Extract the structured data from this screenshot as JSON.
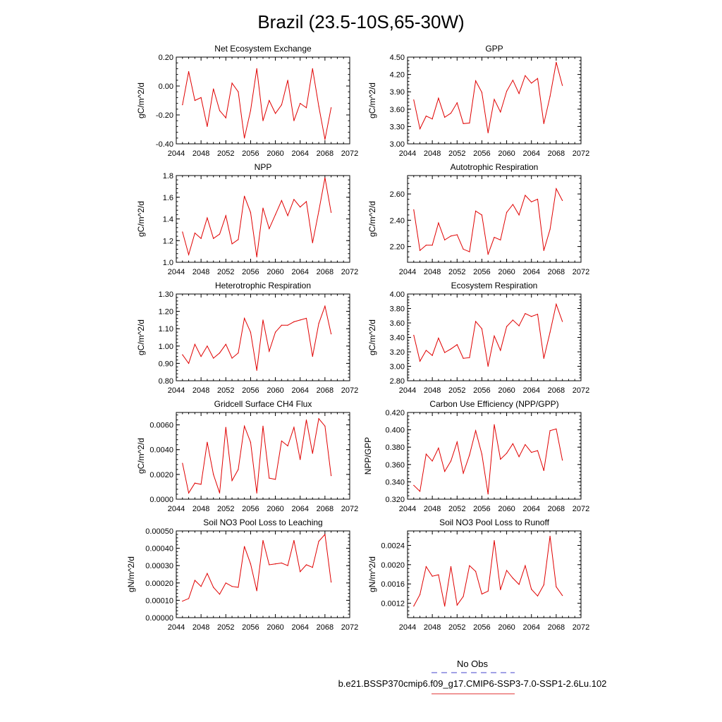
{
  "title": "Brazil (23.5-10S,65-30W)",
  "legend": {
    "entries": [
      {
        "label": "No Obs",
        "color": "#4444cc",
        "dash": "dashed"
      },
      {
        "label": "b.e21.BSSP370cmip6.f09_g17.CMIP6-SSP3-7.0-SSP1-2.6Lu.102",
        "color": "#e03030",
        "dash": "solid"
      }
    ]
  },
  "line_color": "#e00000",
  "chart_data": [
    {
      "type": "line",
      "title": "Net Ecosystem Exchange",
      "ylabel": "gC/m^2/d",
      "xlim": [
        2044,
        2072
      ],
      "xticks": [
        2044,
        2048,
        2052,
        2056,
        2060,
        2064,
        2068,
        2072
      ],
      "xtick_labels": [
        "2044",
        "2048",
        "2052",
        "2056",
        "2060",
        "2064",
        "2068",
        "2072"
      ],
      "ylim": [
        -0.4,
        0.2
      ],
      "yticks": [
        -0.4,
        -0.2,
        0.0,
        0.2
      ],
      "ytick_labels": [
        "-0.40",
        "-0.20",
        "0.00",
        "0.20"
      ],
      "x": [
        2045,
        2046,
        2047,
        2048,
        2049,
        2050,
        2051,
        2052,
        2053,
        2054,
        2055,
        2056,
        2057,
        2058,
        2059,
        2060,
        2061,
        2062,
        2063,
        2064,
        2065,
        2066,
        2067,
        2068,
        2069
      ],
      "values": [
        -0.13,
        0.1,
        -0.1,
        -0.08,
        -0.28,
        -0.02,
        -0.17,
        -0.22,
        0.02,
        -0.04,
        -0.36,
        -0.17,
        0.12,
        -0.24,
        -0.1,
        -0.19,
        -0.13,
        0.04,
        -0.24,
        -0.12,
        -0.15,
        0.12,
        -0.14,
        -0.37,
        -0.15
      ]
    },
    {
      "type": "line",
      "title": "GPP",
      "ylabel": "gC/m^2/d",
      "xlim": [
        2044,
        2072
      ],
      "xticks": [
        2044,
        2048,
        2052,
        2056,
        2060,
        2064,
        2068,
        2072
      ],
      "xtick_labels": [
        "2044",
        "2048",
        "2052",
        "2056",
        "2060",
        "2064",
        "2068",
        "2072"
      ],
      "ylim": [
        3.0,
        4.5
      ],
      "yticks": [
        3.0,
        3.3,
        3.6,
        3.9,
        4.2,
        4.5
      ],
      "ytick_labels": [
        "3.00",
        "3.30",
        "3.60",
        "3.90",
        "4.20",
        "4.50"
      ],
      "x": [
        2045,
        2046,
        2047,
        2048,
        2049,
        2050,
        2051,
        2052,
        2053,
        2054,
        2055,
        2056,
        2057,
        2058,
        2059,
        2060,
        2061,
        2062,
        2063,
        2064,
        2065,
        2066,
        2067,
        2068,
        2069
      ],
      "values": [
        3.76,
        3.26,
        3.48,
        3.43,
        3.79,
        3.46,
        3.53,
        3.71,
        3.35,
        3.36,
        4.09,
        3.89,
        3.19,
        3.77,
        3.55,
        3.91,
        4.1,
        3.87,
        4.18,
        4.05,
        4.13,
        3.35,
        3.82,
        4.41,
        4.01
      ]
    },
    {
      "type": "line",
      "title": "NPP",
      "ylabel": "gC/m^2/d",
      "xlim": [
        2044,
        2072
      ],
      "xticks": [
        2044,
        2048,
        2052,
        2056,
        2060,
        2064,
        2068,
        2072
      ],
      "xtick_labels": [
        "2044",
        "2048",
        "2052",
        "2056",
        "2060",
        "2064",
        "2068",
        "2072"
      ],
      "ylim": [
        1.0,
        1.8
      ],
      "yticks": [
        1.0,
        1.2,
        1.4,
        1.6,
        1.8
      ],
      "ytick_labels": [
        "1.0",
        "1.2",
        "1.4",
        "1.6",
        "1.8"
      ],
      "x": [
        2045,
        2046,
        2047,
        2048,
        2049,
        2050,
        2051,
        2052,
        2053,
        2054,
        2055,
        2056,
        2057,
        2058,
        2059,
        2060,
        2061,
        2062,
        2063,
        2064,
        2065,
        2066,
        2067,
        2068,
        2069
      ],
      "values": [
        1.28,
        1.07,
        1.27,
        1.22,
        1.41,
        1.22,
        1.26,
        1.43,
        1.17,
        1.21,
        1.61,
        1.46,
        1.05,
        1.5,
        1.31,
        1.44,
        1.57,
        1.43,
        1.58,
        1.51,
        1.56,
        1.18,
        1.47,
        1.78,
        1.46
      ]
    },
    {
      "type": "line",
      "title": "Autotrophic Respiration",
      "ylabel": "gC/m^2/d",
      "xlim": [
        2044,
        2072
      ],
      "xticks": [
        2044,
        2048,
        2052,
        2056,
        2060,
        2064,
        2068,
        2072
      ],
      "xtick_labels": [
        "2044",
        "2048",
        "2052",
        "2056",
        "2060",
        "2064",
        "2068",
        "2072"
      ],
      "ylim": [
        2.08,
        2.74
      ],
      "yticks": [
        2.2,
        2.4,
        2.6
      ],
      "ytick_labels": [
        "2.20",
        "2.40",
        "2.60"
      ],
      "x": [
        2045,
        2046,
        2047,
        2048,
        2049,
        2050,
        2051,
        2052,
        2053,
        2054,
        2055,
        2056,
        2057,
        2058,
        2059,
        2060,
        2061,
        2062,
        2063,
        2064,
        2065,
        2066,
        2067,
        2068,
        2069
      ],
      "values": [
        2.48,
        2.17,
        2.21,
        2.21,
        2.38,
        2.25,
        2.28,
        2.29,
        2.18,
        2.16,
        2.47,
        2.44,
        2.14,
        2.27,
        2.25,
        2.46,
        2.52,
        2.44,
        2.59,
        2.54,
        2.56,
        2.17,
        2.33,
        2.64,
        2.55
      ]
    },
    {
      "type": "line",
      "title": "Heterotrophic Respiration",
      "ylabel": "gC/m^2/d",
      "xlim": [
        2044,
        2072
      ],
      "xticks": [
        2044,
        2048,
        2052,
        2056,
        2060,
        2064,
        2068,
        2072
      ],
      "xtick_labels": [
        "2044",
        "2048",
        "2052",
        "2056",
        "2060",
        "2064",
        "2068",
        "2072"
      ],
      "ylim": [
        0.8,
        1.3
      ],
      "yticks": [
        0.8,
        0.9,
        1.0,
        1.1,
        1.2,
        1.3
      ],
      "ytick_labels": [
        "0.80",
        "0.90",
        "1.00",
        "1.10",
        "1.20",
        "1.30"
      ],
      "x": [
        2045,
        2046,
        2047,
        2048,
        2049,
        2050,
        2051,
        2052,
        2053,
        2054,
        2055,
        2056,
        2057,
        2058,
        2059,
        2060,
        2061,
        2062,
        2063,
        2064,
        2065,
        2066,
        2067,
        2068,
        2069
      ],
      "values": [
        0.95,
        0.9,
        1.01,
        0.94,
        1.0,
        0.93,
        0.96,
        1.01,
        0.93,
        0.96,
        1.16,
        1.08,
        0.86,
        1.15,
        0.97,
        1.08,
        1.12,
        1.12,
        1.14,
        1.15,
        1.16,
        0.94,
        1.13,
        1.23,
        1.07
      ]
    },
    {
      "type": "line",
      "title": "Ecosystem Respiration",
      "ylabel": "gC/m^2/d",
      "xlim": [
        2044,
        2072
      ],
      "xticks": [
        2044,
        2048,
        2052,
        2056,
        2060,
        2064,
        2068,
        2072
      ],
      "xtick_labels": [
        "2044",
        "2048",
        "2052",
        "2056",
        "2060",
        "2064",
        "2068",
        "2072"
      ],
      "ylim": [
        2.8,
        4.0
      ],
      "yticks": [
        2.8,
        3.0,
        3.2,
        3.4,
        3.6,
        3.8,
        4.0
      ],
      "ytick_labels": [
        "2.80",
        "3.00",
        "3.20",
        "3.40",
        "3.60",
        "3.80",
        "4.00"
      ],
      "x": [
        2045,
        2046,
        2047,
        2048,
        2049,
        2050,
        2051,
        2052,
        2053,
        2054,
        2055,
        2056,
        2057,
        2058,
        2059,
        2060,
        2061,
        2062,
        2063,
        2064,
        2065,
        2066,
        2067,
        2068,
        2069
      ],
      "values": [
        3.43,
        3.07,
        3.22,
        3.15,
        3.39,
        3.19,
        3.24,
        3.3,
        3.11,
        3.12,
        3.62,
        3.52,
        3.0,
        3.42,
        3.22,
        3.55,
        3.64,
        3.56,
        3.73,
        3.69,
        3.72,
        3.11,
        3.47,
        3.86,
        3.62
      ]
    },
    {
      "type": "line",
      "title": "Gridcell Surface CH4 Flux",
      "ylabel": "gC/m^2/d",
      "xlim": [
        2044,
        2072
      ],
      "xticks": [
        2044,
        2048,
        2052,
        2056,
        2060,
        2064,
        2068,
        2072
      ],
      "xtick_labels": [
        "2044",
        "2048",
        "2052",
        "2056",
        "2060",
        "2064",
        "2068",
        "2072"
      ],
      "ylim": [
        0.0,
        0.007
      ],
      "yticks": [
        0.0,
        0.002,
        0.004,
        0.006
      ],
      "ytick_labels": [
        "0.0000",
        "0.0020",
        "0.0040",
        "0.0060"
      ],
      "x": [
        2045,
        2046,
        2047,
        2048,
        2049,
        2050,
        2051,
        2052,
        2053,
        2054,
        2055,
        2056,
        2057,
        2058,
        2059,
        2060,
        2061,
        2062,
        2063,
        2064,
        2065,
        2066,
        2067,
        2068,
        2069
      ],
      "values": [
        0.0029,
        0.0005,
        0.0013,
        0.0012,
        0.0046,
        0.002,
        0.0005,
        0.0058,
        0.0015,
        0.0024,
        0.0059,
        0.0046,
        0.0005,
        0.0059,
        0.0017,
        0.0016,
        0.0047,
        0.0043,
        0.0058,
        0.0032,
        0.0064,
        0.0037,
        0.0065,
        0.0059,
        0.0019
      ]
    },
    {
      "type": "line",
      "title": "Carbon Use Efficiency (NPP/GPP)",
      "ylabel": "NPP/GPP",
      "xlim": [
        2044,
        2072
      ],
      "xticks": [
        2044,
        2048,
        2052,
        2056,
        2060,
        2064,
        2068,
        2072
      ],
      "xtick_labels": [
        "2044",
        "2048",
        "2052",
        "2056",
        "2060",
        "2064",
        "2068",
        "2072"
      ],
      "ylim": [
        0.32,
        0.42
      ],
      "yticks": [
        0.32,
        0.34,
        0.36,
        0.38,
        0.4,
        0.42
      ],
      "ytick_labels": [
        "0.320",
        "0.340",
        "0.360",
        "0.380",
        "0.400",
        "0.420"
      ],
      "x": [
        2045,
        2046,
        2047,
        2048,
        2049,
        2050,
        2051,
        2052,
        2053,
        2054,
        2055,
        2056,
        2057,
        2058,
        2059,
        2060,
        2061,
        2062,
        2063,
        2064,
        2065,
        2066,
        2067,
        2068,
        2069
      ],
      "values": [
        0.336,
        0.329,
        0.372,
        0.364,
        0.379,
        0.352,
        0.364,
        0.386,
        0.35,
        0.371,
        0.399,
        0.372,
        0.326,
        0.406,
        0.366,
        0.373,
        0.384,
        0.369,
        0.383,
        0.374,
        0.376,
        0.353,
        0.399,
        0.401,
        0.365
      ]
    },
    {
      "type": "line",
      "title": "Soil NO3 Pool Loss to Leaching",
      "ylabel": "gN/m^2/d",
      "xlim": [
        2044,
        2072
      ],
      "xticks": [
        2044,
        2048,
        2052,
        2056,
        2060,
        2064,
        2068,
        2072
      ],
      "xtick_labels": [
        "2044",
        "2048",
        "2052",
        "2056",
        "2060",
        "2064",
        "2068",
        "2072"
      ],
      "ylim": [
        0.0,
        0.0005
      ],
      "yticks": [
        0.0,
        0.0001,
        0.0002,
        0.0003,
        0.0004,
        0.0005
      ],
      "ytick_labels": [
        "0.00000",
        "0.00010",
        "0.00020",
        "0.00030",
        "0.00040",
        "0.00050"
      ],
      "x": [
        2045,
        2046,
        2047,
        2048,
        2049,
        2050,
        2051,
        2052,
        2053,
        2054,
        2055,
        2056,
        2057,
        2058,
        2059,
        2060,
        2061,
        2062,
        2063,
        2064,
        2065,
        2066,
        2067,
        2068,
        2069
      ],
      "values": [
        9.5e-05,
        0.00011,
        0.000215,
        0.00018,
        0.000255,
        0.000175,
        0.000135,
        0.0002,
        0.00018,
        0.000175,
        0.00041,
        0.00031,
        0.000155,
        0.000445,
        0.000305,
        0.00031,
        0.000315,
        0.0003,
        0.000445,
        0.000265,
        0.000305,
        0.00029,
        0.00044,
        0.00048,
        0.000205
      ]
    },
    {
      "type": "line",
      "title": "Soil NO3 Pool Loss to Runoff",
      "ylabel": "gN/m^2/d",
      "xlim": [
        2044,
        2072
      ],
      "xticks": [
        2044,
        2048,
        2052,
        2056,
        2060,
        2064,
        2068,
        2072
      ],
      "xtick_labels": [
        "2044",
        "2048",
        "2052",
        "2056",
        "2060",
        "2064",
        "2068",
        "2072"
      ],
      "ylim": [
        0.0009,
        0.0027
      ],
      "yticks": [
        0.0012,
        0.0016,
        0.002,
        0.0024
      ],
      "ytick_labels": [
        "0.0012",
        "0.0016",
        "0.0020",
        "0.0024"
      ],
      "x": [
        2045,
        2046,
        2047,
        2048,
        2049,
        2050,
        2051,
        2052,
        2053,
        2054,
        2055,
        2056,
        2057,
        2058,
        2059,
        2060,
        2061,
        2062,
        2063,
        2064,
        2065,
        2066,
        2067,
        2068,
        2069
      ],
      "values": [
        0.00114,
        0.00138,
        0.00196,
        0.00176,
        0.00179,
        0.00114,
        0.00196,
        0.00116,
        0.00134,
        0.00198,
        0.00186,
        0.00139,
        0.00145,
        0.0025,
        0.00148,
        0.00188,
        0.00172,
        0.00159,
        0.00198,
        0.00149,
        0.00135,
        0.00158,
        0.00259,
        0.00154,
        0.00136
      ]
    }
  ]
}
